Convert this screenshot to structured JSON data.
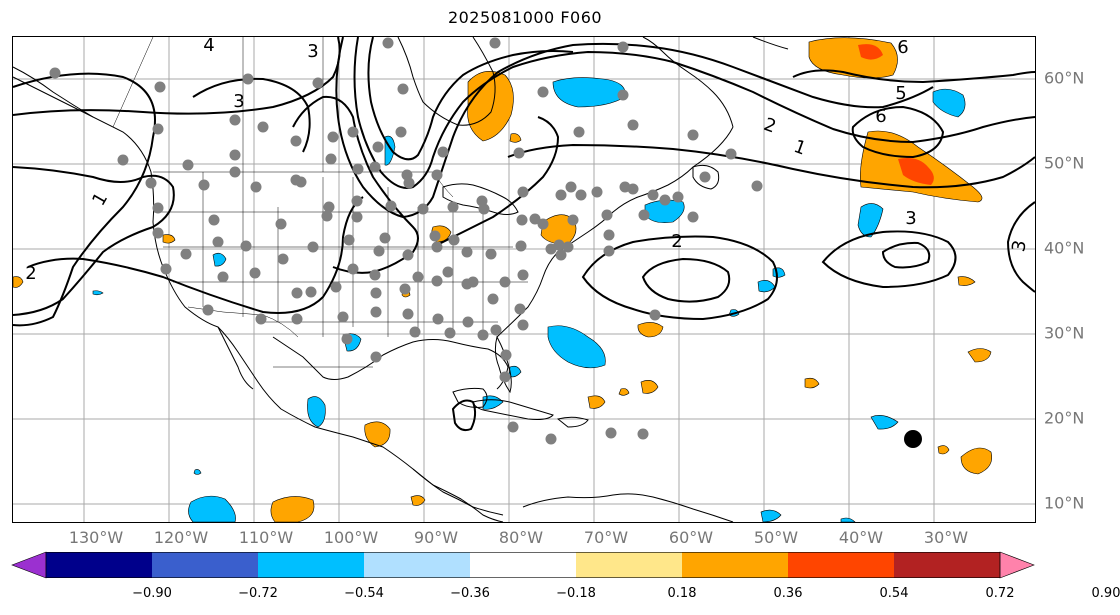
{
  "title": "2025081000 F060",
  "lon_labels": [
    "130°W",
    "120°W",
    "110°W",
    "100°W",
    "90°W",
    "80°W",
    "70°W",
    "60°W",
    "50°W",
    "40°W",
    "30°W"
  ],
  "lat_labels": [
    "60°N",
    "50°N",
    "40°N",
    "30°N",
    "20°N",
    "10°N"
  ],
  "contour_labels": [
    "3",
    "3",
    "1",
    "2",
    "2",
    "1",
    "2",
    "5",
    "6",
    "6",
    "3",
    "3",
    "4"
  ],
  "colorbar": {
    "ticks": [
      "−0.90",
      "−0.72",
      "−0.54",
      "−0.36",
      "−0.18",
      "0.18",
      "0.36",
      "0.54",
      "0.72",
      "0.90"
    ],
    "colors": [
      "#9b30d0",
      "#00008b",
      "#3a5fcd",
      "#00bfff",
      "#b0e0ff",
      "#ffffff",
      "#ffe78a",
      "#ffa500",
      "#ff4500",
      "#b22222",
      "#ff82ab"
    ]
  },
  "colors": {
    "positive_fill": "#ffa500",
    "strong_positive_fill": "#ff4500",
    "negative_fill": "#00bfff",
    "station_marker": "#808080",
    "storm_marker": "#000000",
    "grid": "#a9a9a9"
  }
}
